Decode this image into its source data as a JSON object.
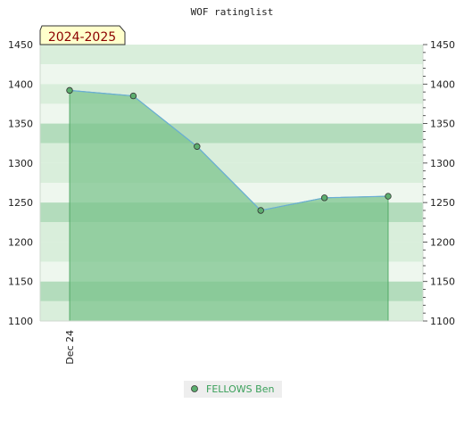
{
  "chart_data": {
    "type": "area",
    "title": "WOF ratinglist",
    "badge": "2024-2025",
    "x": [
      "Dec 24",
      "",
      "",
      "",
      "",
      ""
    ],
    "ylim": [
      1100,
      1450
    ],
    "yticks": [
      1100,
      1150,
      1200,
      1250,
      1300,
      1350,
      1400,
      1450
    ],
    "series": [
      {
        "name": "FELLOWS Ben",
        "values": [
          1392,
          1385,
          1321,
          1240,
          1256,
          1258
        ]
      }
    ],
    "legend_position": "bottom-center",
    "grid": true,
    "colors": {
      "fill": "#7cc48e",
      "line": "#6aaed6",
      "point": "#5cae6e",
      "legend_text": "#3aa05a",
      "badge_bg": "#ffffcc",
      "badge_text": "#8b0000",
      "band_light": "#eef7ee",
      "band_mid": "#d9eedb",
      "band_dark": "#b3dcbc"
    }
  }
}
